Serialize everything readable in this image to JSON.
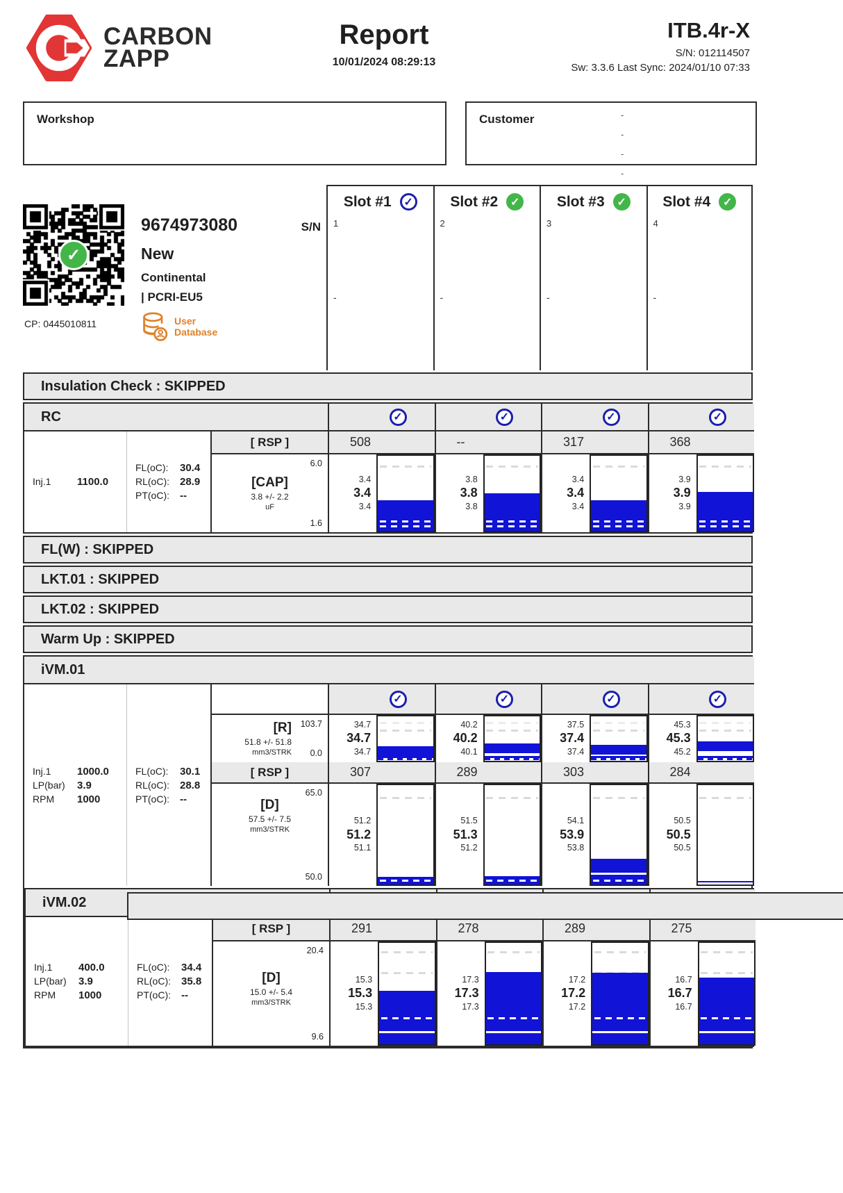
{
  "header": {
    "brand_line1": "CARBON",
    "brand_line2": "ZAPP",
    "title": "Report",
    "datetime": "10/01/2024 08:29:13",
    "device": "ITB.4r-X",
    "serial": "S/N: 012114507",
    "sw_line": "Sw: 3.3.6 Last Sync: 2024/01/10 07:33"
  },
  "boxes": {
    "workshop_label": "Workshop",
    "customer_label": "Customer",
    "customer_placeholder_dashes": [
      "-",
      "-",
      "-",
      "-"
    ]
  },
  "slots": [
    {
      "title": "Slot #1",
      "index": "1",
      "placeholder": "-",
      "check_style": "blue"
    },
    {
      "title": "Slot #2",
      "index": "2",
      "placeholder": "-",
      "check_style": "green"
    },
    {
      "title": "Slot #3",
      "index": "3",
      "placeholder": "-",
      "check_style": "green"
    },
    {
      "title": "Slot #4",
      "index": "4",
      "placeholder": "-",
      "check_style": "green"
    }
  ],
  "injector": {
    "part_number": "9674973080",
    "sn_label": "S/N",
    "condition": "New",
    "brand": "Continental",
    "type": "| PCRI-EU5",
    "cp": "CP: 0445010811",
    "db_label1": "User",
    "db_label2": "Database"
  },
  "sections": {
    "insulation": "Insulation Check : SKIPPED",
    "rc": "RC",
    "flw": "FL(W) : SKIPPED",
    "lkt01": "LKT.01 : SKIPPED",
    "lkt02": "LKT.02 : SKIPPED",
    "warmup": "Warm Up : SKIPPED",
    "ivm01": "iVM.01",
    "ivm02": "iVM.02"
  },
  "rsp_label": "[ RSP ]",
  "rc_info": {
    "inj_label": "Inj.1",
    "inj_value": "1100.0",
    "temps": [
      {
        "label": "FL(oC):",
        "value": "30.4"
      },
      {
        "label": "RL(oC):",
        "value": "28.9"
      },
      {
        "label": "PT(oC):",
        "value": "--"
      }
    ]
  },
  "ivm01_info": {
    "params": [
      {
        "label": "Inj.1",
        "value": "1000.0"
      },
      {
        "label": "LP(bar)",
        "value": "3.9"
      },
      {
        "label": "RPM",
        "value": "1000"
      }
    ],
    "temps": [
      {
        "label": "FL(oC):",
        "value": "30.1"
      },
      {
        "label": "RL(oC):",
        "value": "28.8"
      },
      {
        "label": "PT(oC):",
        "value": "--"
      }
    ]
  },
  "ivm02_info": {
    "params": [
      {
        "label": "Inj.1",
        "value": "400.0"
      },
      {
        "label": "LP(bar)",
        "value": "3.9"
      },
      {
        "label": "RPM",
        "value": "1000"
      }
    ],
    "temps": [
      {
        "label": "FL(oC):",
        "value": "34.4"
      },
      {
        "label": "RL(oC):",
        "value": "35.8"
      },
      {
        "label": "PT(oC):",
        "value": "--"
      }
    ]
  },
  "icons": {
    "check": "✓"
  },
  "colors": {
    "accent_red": "#e23535",
    "check_blue": "#1a1fae",
    "check_green": "#43b649",
    "chart_blue": "#1113d6",
    "bar_gray": "#e9e9e9",
    "db_orange": "#e0822b"
  },
  "chart_data": [
    {
      "id": "rc_cap",
      "test": "RC",
      "type": "bar",
      "label": "[CAP]",
      "tolerance": "3.8 +/- 2.2",
      "unit": "uF",
      "scale_max": 6.0,
      "scale_min": 1.6,
      "scale_max_label": "6.0",
      "scale_min_label": "1.6",
      "rsp": [
        "508",
        "--",
        "317",
        "368"
      ],
      "slots": [
        {
          "max": "3.4",
          "avg": "3.4",
          "min": "3.4",
          "v": 3.4
        },
        {
          "max": "3.8",
          "avg": "3.8",
          "min": "3.8",
          "v": 3.8
        },
        {
          "max": "3.4",
          "avg": "3.4",
          "min": "3.4",
          "v": 3.4
        },
        {
          "max": "3.9",
          "avg": "3.9",
          "min": "3.9",
          "v": 3.9
        }
      ]
    },
    {
      "id": "ivm01_r",
      "test": "iVM.01",
      "type": "band",
      "label": "[R]",
      "tolerance": "51.8 +/- 51.8",
      "unit": "mm3/STRK",
      "scale_max": 103.7,
      "scale_min": 0.0,
      "scale_max_label": "103.7",
      "scale_min_label": "0.0",
      "rsp": [
        "307",
        "289",
        "303",
        "284"
      ],
      "slots": [
        {
          "max": "34.7",
          "avg": "34.7",
          "min": "34.7",
          "v": 34.7
        },
        {
          "max": "40.2",
          "avg": "40.2",
          "min": "40.1",
          "v": 40.2
        },
        {
          "max": "37.5",
          "avg": "37.4",
          "min": "37.4",
          "v": 37.4
        },
        {
          "max": "45.3",
          "avg": "45.3",
          "min": "45.2",
          "v": 45.3
        }
      ]
    },
    {
      "id": "ivm01_d",
      "test": "iVM.01",
      "type": "bar",
      "label": "[D]",
      "tolerance": "57.5 +/- 7.5",
      "unit": "mm3/STRK",
      "scale_max": 65.0,
      "scale_min": 50.0,
      "scale_max_label": "65.0",
      "scale_min_label": "50.0",
      "slots": [
        {
          "max": "51.2",
          "avg": "51.2",
          "min": "51.1",
          "v": 51.2
        },
        {
          "max": "51.5",
          "avg": "51.3",
          "min": "51.2",
          "v": 51.3
        },
        {
          "max": "54.1",
          "avg": "53.9",
          "min": "53.8",
          "v": 53.9
        },
        {
          "max": "50.5",
          "avg": "50.5",
          "min": "50.5",
          "v": 50.5
        }
      ]
    },
    {
      "id": "ivm02_d",
      "test": "iVM.02",
      "type": "bar",
      "label": "[D]",
      "tolerance": "15.0 +/- 5.4",
      "unit": "mm3/STRK",
      "scale_max": 20.4,
      "scale_min": 9.6,
      "scale_max_label": "20.4",
      "scale_min_label": "9.6",
      "rsp": [
        "291",
        "278",
        "289",
        "275"
      ],
      "slots": [
        {
          "max": "15.3",
          "avg": "15.3",
          "min": "15.3",
          "v": 15.3
        },
        {
          "max": "17.3",
          "avg": "17.3",
          "min": "17.3",
          "v": 17.3
        },
        {
          "max": "17.2",
          "avg": "17.2",
          "min": "17.2",
          "v": 17.2
        },
        {
          "max": "16.7",
          "avg": "16.7",
          "min": "16.7",
          "v": 16.7
        }
      ]
    }
  ]
}
